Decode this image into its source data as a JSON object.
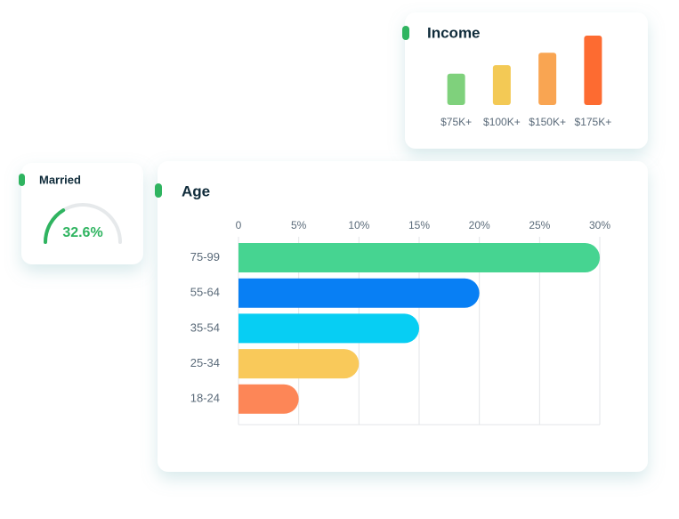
{
  "chart_data": [
    {
      "type": "bar",
      "orientation": "vertical",
      "title": "Income",
      "categories": [
        "$75K+",
        "$100K+",
        "$150K+",
        "$175K+"
      ],
      "values": [
        33,
        42,
        55,
        73
      ],
      "colors": [
        "#7fd17c",
        "#f3c955",
        "#f9a552",
        "#fd6b31"
      ]
    },
    {
      "type": "gauge",
      "title": "Married",
      "ylim": [
        0,
        100
      ],
      "values": [
        32.6
      ],
      "value_labels": [
        "32.6%"
      ],
      "color": "#2fb460"
    },
    {
      "type": "bar",
      "orientation": "horizontal",
      "title": "Age",
      "categories": [
        "75-99",
        "55-64",
        "35-54",
        "25-34",
        "18-24"
      ],
      "values": [
        30,
        20,
        15,
        10,
        5
      ],
      "colors": [
        "#46d491",
        "#087ff4",
        "#07cef3",
        "#f9c95a",
        "#fd8657"
      ],
      "xlim": [
        0,
        30
      ],
      "xticks": [
        0,
        {
          "value": 5,
          "label": "5%"
        },
        {
          "value": 10,
          "label": "10%"
        },
        {
          "value": 15,
          "label": "15%"
        },
        {
          "value": 20,
          "label": "20%"
        },
        {
          "value": 25,
          "label": "25%"
        },
        {
          "value": 30,
          "label": "30%"
        }
      ],
      "grid": true
    }
  ]
}
